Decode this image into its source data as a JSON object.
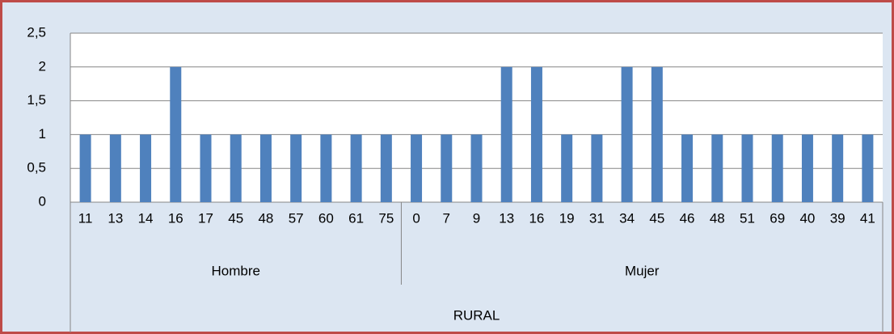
{
  "chart_data": {
    "type": "bar",
    "color": "#4f81bd",
    "grid": true,
    "ylim": [
      0,
      2.5
    ],
    "yticks": [
      0,
      {
        "value": 0.5,
        "label": "0,5"
      },
      1,
      {
        "value": 1.5,
        "label": "1,5"
      },
      2,
      {
        "value": 2.5,
        "label": "2,5"
      }
    ],
    "top_group": "RURAL",
    "groups": [
      {
        "name": "Hombre",
        "categories": [
          "11",
          "13",
          "14",
          "16",
          "17",
          "45",
          "48",
          "57",
          "60",
          "61",
          "75"
        ],
        "values": [
          1,
          1,
          1,
          2,
          1,
          1,
          1,
          1,
          1,
          1,
          1
        ]
      },
      {
        "name": "Mujer",
        "categories": [
          "0",
          "7",
          "9",
          "13",
          "16",
          "19",
          "31",
          "34",
          "45",
          "46",
          "48",
          "51",
          "69",
          "40",
          "39",
          "41"
        ],
        "values": [
          1,
          1,
          1,
          2,
          2,
          1,
          1,
          2,
          2,
          1,
          1,
          1,
          1,
          1,
          1,
          1
        ]
      }
    ]
  }
}
